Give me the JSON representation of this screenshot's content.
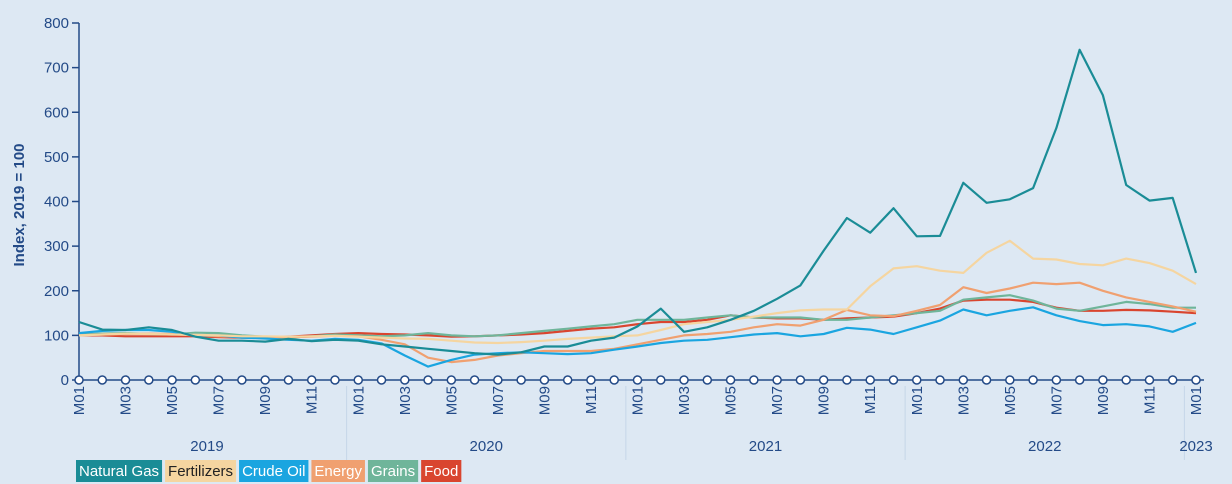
{
  "chart_data": {
    "type": "line",
    "y_label": "Index, 2019 = 100",
    "categories": [
      "M01",
      null,
      "M03",
      null,
      "M05",
      null,
      "M07",
      null,
      "M09",
      null,
      "M11",
      null,
      "M01",
      null,
      "M03",
      null,
      "M05",
      null,
      "M07",
      null,
      "M09",
      null,
      "M11",
      null,
      "M01",
      null,
      "M03",
      null,
      "M05",
      null,
      "M07",
      null,
      "M09",
      null,
      "M11",
      null,
      "M01",
      null,
      "M03",
      null,
      "M05",
      null,
      "M07",
      null,
      "M09",
      null,
      "M11",
      null,
      "M01"
    ],
    "years": [
      "2019",
      "2020",
      "2021",
      "2022",
      "2023"
    ],
    "ylim": [
      0,
      800
    ],
    "yticks": [
      0,
      100,
      200,
      300,
      400,
      500,
      600,
      700,
      800
    ],
    "grid": false,
    "legend": "bottom-left",
    "series": [
      {
        "name": "Natural Gas",
        "color": "#1a8c96",
        "values": [
          130,
          113,
          112,
          118,
          112,
          97,
          88,
          88,
          86,
          92,
          87,
          90,
          88,
          80,
          75,
          70,
          65,
          60,
          57,
          62,
          75,
          75,
          88,
          95,
          120,
          160,
          108,
          118,
          135,
          155,
          182,
          212,
          290,
          363,
          330,
          385,
          322,
          323,
          442,
          397,
          405,
          430,
          565,
          740,
          638,
          437,
          402,
          408,
          240
        ]
      },
      {
        "name": "Fertilizers",
        "color": "#f5d5a0",
        "values": [
          100,
          102,
          104,
          103,
          102,
          101,
          100,
          98,
          98,
          97,
          98,
          99,
          97,
          95,
          93,
          92,
          88,
          84,
          83,
          85,
          88,
          92,
          95,
          98,
          100,
          112,
          125,
          130,
          135,
          142,
          150,
          156,
          158,
          158,
          210,
          250,
          255,
          245,
          240,
          285,
          312,
          272,
          270,
          260,
          257,
          272,
          262,
          245,
          215
        ]
      },
      {
        "name": "Crude Oil",
        "color": "#1aa5e0",
        "values": [
          105,
          110,
          112,
          112,
          108,
          100,
          100,
          95,
          93,
          90,
          88,
          92,
          90,
          82,
          55,
          30,
          45,
          57,
          60,
          62,
          60,
          58,
          60,
          68,
          75,
          83,
          88,
          90,
          96,
          102,
          105,
          98,
          103,
          117,
          113,
          103,
          118,
          133,
          158,
          145,
          155,
          163,
          145,
          132,
          123,
          125,
          120,
          108,
          128
        ]
      },
      {
        "name": "Energy",
        "color": "#f0a070",
        "values": [
          100,
          102,
          103,
          104,
          103,
          100,
          98,
          96,
          95,
          96,
          97,
          99,
          98,
          90,
          80,
          50,
          40,
          45,
          55,
          60,
          65,
          65,
          65,
          70,
          80,
          90,
          100,
          103,
          108,
          118,
          125,
          122,
          135,
          157,
          145,
          143,
          155,
          168,
          208,
          195,
          205,
          218,
          215,
          218,
          200,
          185,
          175,
          165,
          153
        ]
      },
      {
        "name": "Grains",
        "color": "#6fb59a",
        "values": [
          102,
          104,
          105,
          103,
          102,
          106,
          105,
          100,
          97,
          95,
          98,
          102,
          100,
          98,
          100,
          105,
          100,
          98,
          100,
          105,
          110,
          115,
          120,
          125,
          135,
          135,
          135,
          140,
          145,
          140,
          140,
          140,
          135,
          135,
          140,
          145,
          150,
          155,
          180,
          185,
          190,
          178,
          160,
          155,
          165,
          175,
          170,
          162,
          162
        ]
      },
      {
        "name": "Food",
        "color": "#d9452f",
        "values": [
          100,
          100,
          98,
          98,
          98,
          98,
          96,
          95,
          95,
          97,
          100,
          103,
          105,
          103,
          102,
          100,
          97,
          98,
          100,
          102,
          105,
          110,
          115,
          118,
          125,
          130,
          130,
          135,
          145,
          140,
          138,
          138,
          135,
          138,
          140,
          142,
          150,
          160,
          178,
          180,
          180,
          175,
          162,
          155,
          155,
          157,
          156,
          153,
          150
        ]
      }
    ]
  }
}
